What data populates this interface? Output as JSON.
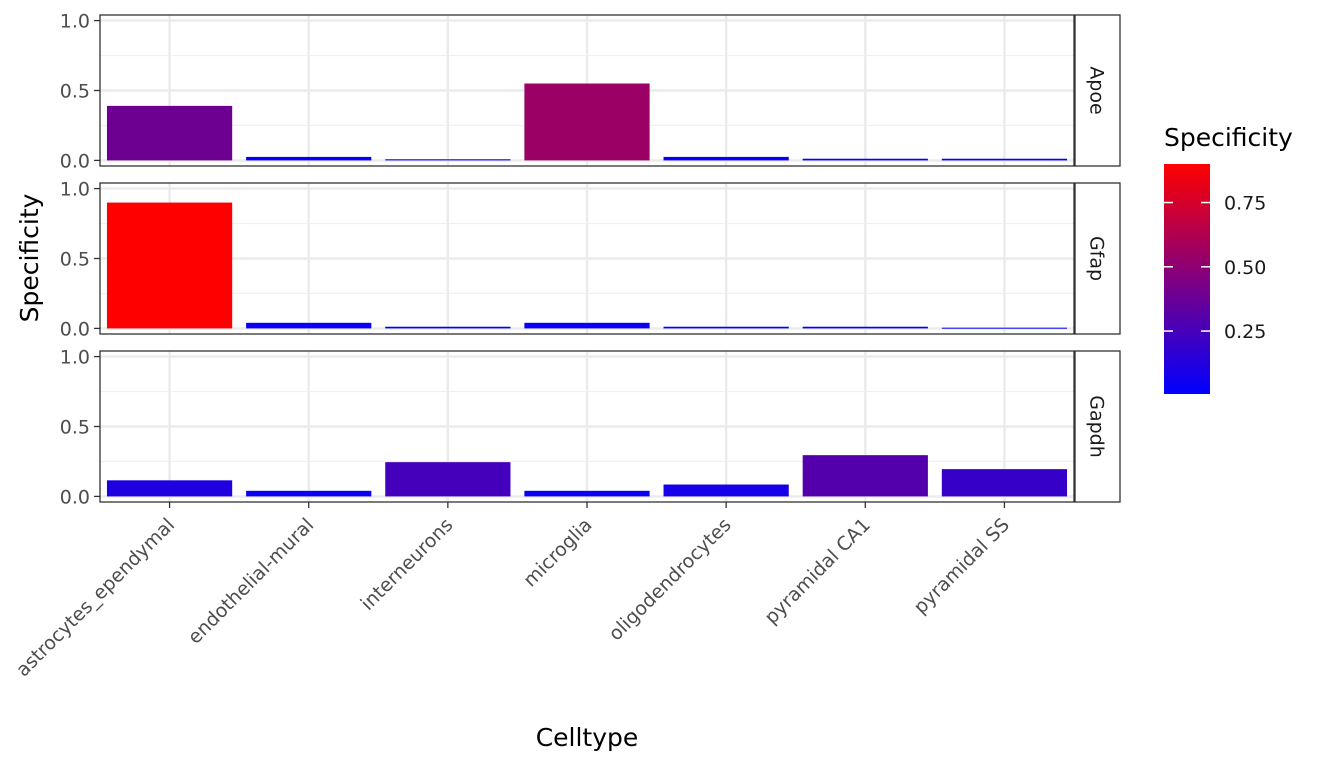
{
  "chart_data": {
    "type": "bar",
    "xlabel": "Celltype",
    "ylabel": "Specificity",
    "ylim": [
      0,
      1.0
    ],
    "yticks": [
      0.0,
      0.5,
      1.0
    ],
    "ytick_labels": [
      "0.0",
      "0.5",
      "1.0"
    ],
    "grid": true,
    "categories": [
      "astrocytes_ependymal",
      "endothelial-mural",
      "interneurons",
      "microglia",
      "oligodendrocytes",
      "pyramidal CA1",
      "pyramidal SS"
    ],
    "facets": [
      {
        "name": "Apoe",
        "values": [
          0.39,
          0.025,
          0.008,
          0.55,
          0.025,
          0.012,
          0.012
        ]
      },
      {
        "name": "Gfap",
        "values": [
          0.9,
          0.04,
          0.012,
          0.04,
          0.012,
          0.012,
          0.005
        ]
      },
      {
        "name": "Gapdh",
        "values": [
          0.115,
          0.04,
          0.245,
          0.04,
          0.085,
          0.295,
          0.195
        ]
      }
    ],
    "legend": {
      "title": "Specificity",
      "position": "right",
      "ticks": [
        0.25,
        0.5,
        0.75
      ],
      "tick_labels": [
        "0.25",
        "0.50",
        "0.75"
      ],
      "range": [
        0.005,
        0.9
      ],
      "low_color": "#0000ff",
      "high_color": "#ff0000"
    }
  }
}
